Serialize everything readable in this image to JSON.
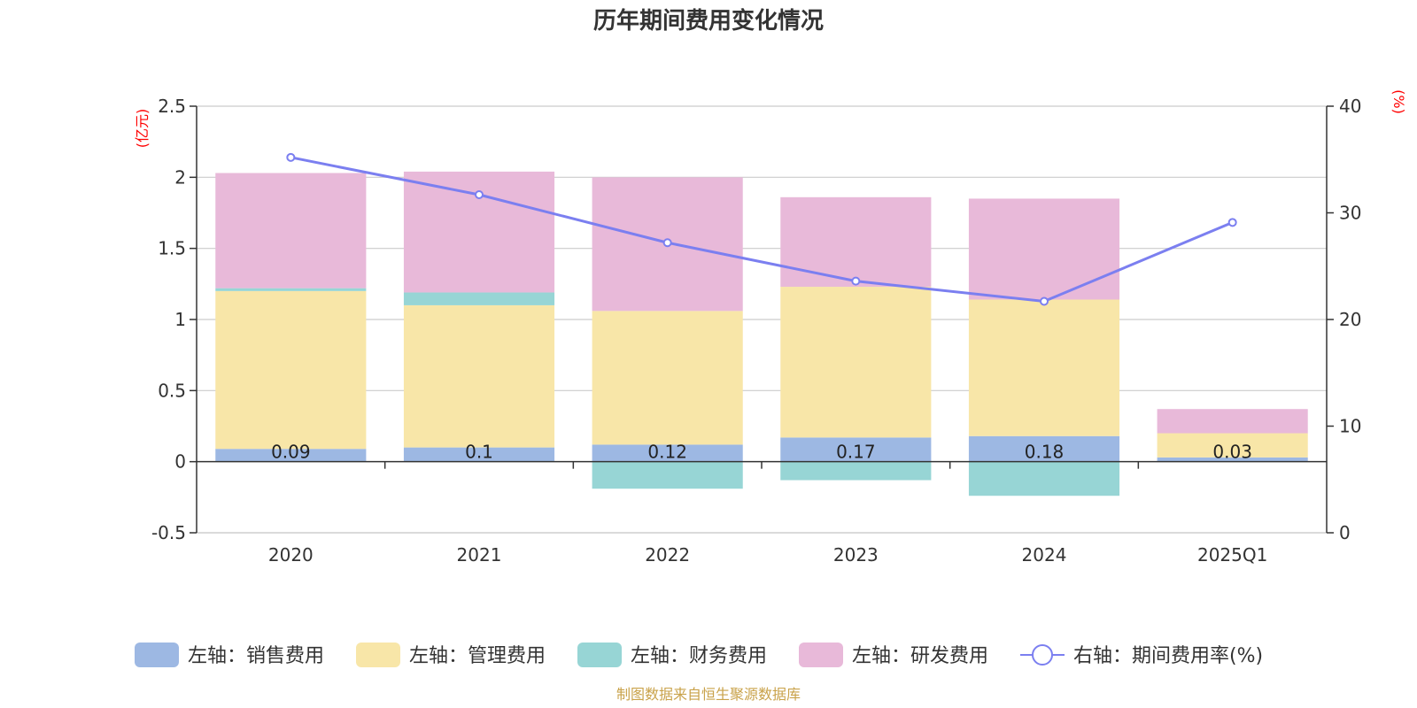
{
  "chart_data": {
    "type": "bar",
    "title": "历年期间费用变化情况",
    "categories": [
      "2020",
      "2021",
      "2022",
      "2023",
      "2024",
      "2025Q1"
    ],
    "stacked": true,
    "left_axis": {
      "unit_label": "(亿元)",
      "ylim": [
        -0.5,
        2.5
      ],
      "ticks": [
        "-0.5",
        "0",
        "0.5",
        "1",
        "1.5",
        "2",
        "2.5"
      ]
    },
    "right_axis": {
      "unit_label": "(%)",
      "ylim": [
        0,
        40
      ],
      "ticks": [
        "0",
        "10",
        "20",
        "30",
        "40"
      ]
    },
    "grid": true,
    "legend_position": "bottom",
    "series": [
      {
        "name": "左轴：销售费用",
        "axis": "left",
        "type": "bar",
        "color": "#9db8e3",
        "values": [
          0.09,
          0.1,
          0.12,
          0.17,
          0.18,
          0.03
        ],
        "labels": [
          "0.09",
          "0.1",
          "0.12",
          "0.17",
          "0.18",
          "0.03"
        ]
      },
      {
        "name": "左轴：管理费用",
        "axis": "left",
        "type": "bar",
        "color": "#f8e6a8",
        "values": [
          1.11,
          1.0,
          0.94,
          1.06,
          0.96,
          0.17
        ]
      },
      {
        "name": "左轴：财务费用",
        "axis": "left",
        "type": "bar",
        "color": "#97d5d5",
        "values": [
          0.02,
          0.09,
          -0.19,
          -0.13,
          -0.24,
          0.0
        ]
      },
      {
        "name": "左轴：研发费用",
        "axis": "left",
        "type": "bar",
        "color": "#e8b9d9",
        "values": [
          0.81,
          0.85,
          0.94,
          0.63,
          0.71,
          0.17
        ]
      },
      {
        "name": "右轴：期间费用率(%)",
        "axis": "right",
        "type": "line",
        "color": "#7b7ff0",
        "values": [
          35.2,
          31.7,
          27.2,
          23.6,
          21.7,
          29.1
        ]
      }
    ],
    "source": "制图数据来自恒生聚源数据库"
  }
}
